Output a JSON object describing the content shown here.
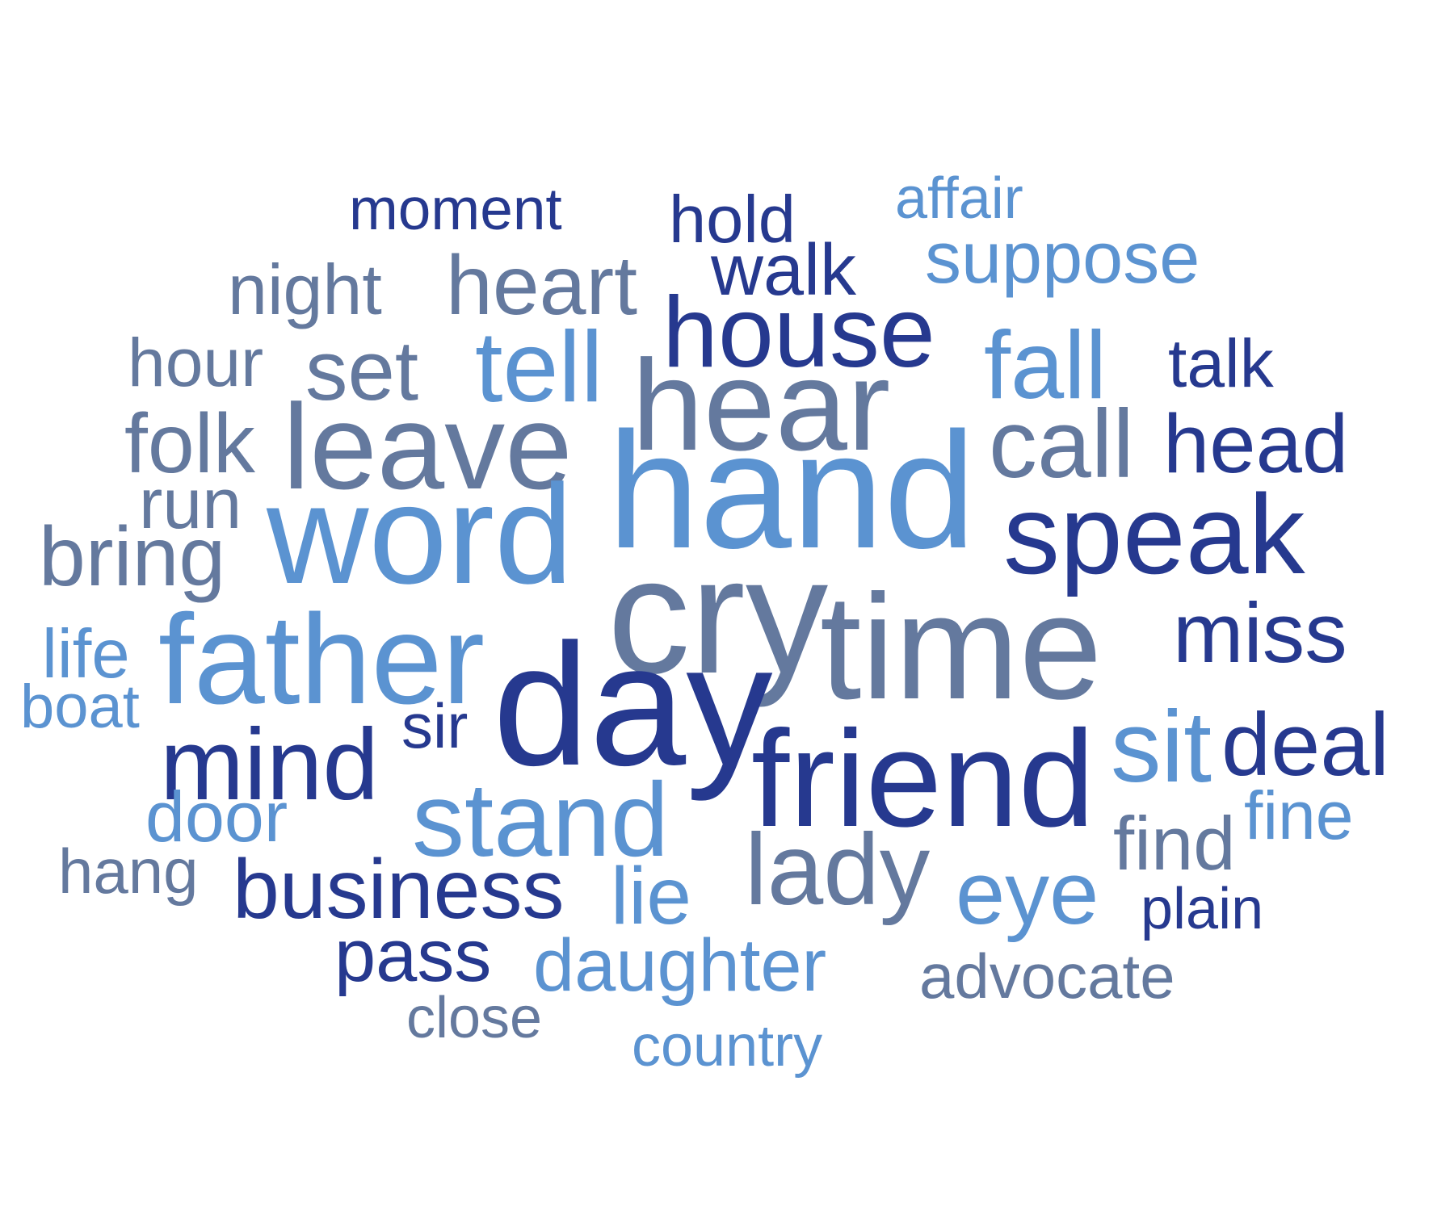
{
  "palette": {
    "dark": "#26398f",
    "light": "#5b93d1",
    "gray": "#64799e",
    "background": "#ffffff"
  },
  "words": [
    {
      "text": "moment",
      "color": "dark"
    },
    {
      "text": "hold",
      "color": "dark"
    },
    {
      "text": "affair",
      "color": "light"
    },
    {
      "text": "walk",
      "color": "dark"
    },
    {
      "text": "suppose",
      "color": "light"
    },
    {
      "text": "night",
      "color": "gray"
    },
    {
      "text": "heart",
      "color": "gray"
    },
    {
      "text": "house",
      "color": "dark"
    },
    {
      "text": "hour",
      "color": "gray"
    },
    {
      "text": "set",
      "color": "gray"
    },
    {
      "text": "tell",
      "color": "light"
    },
    {
      "text": "fall",
      "color": "light"
    },
    {
      "text": "talk",
      "color": "dark"
    },
    {
      "text": "hear",
      "color": "gray"
    },
    {
      "text": "folk",
      "color": "gray"
    },
    {
      "text": "leave",
      "color": "gray"
    },
    {
      "text": "call",
      "color": "gray"
    },
    {
      "text": "head",
      "color": "dark"
    },
    {
      "text": "hand",
      "color": "light"
    },
    {
      "text": "run",
      "color": "gray"
    },
    {
      "text": "word",
      "color": "light"
    },
    {
      "text": "speak",
      "color": "dark"
    },
    {
      "text": "bring",
      "color": "gray"
    },
    {
      "text": "cry",
      "color": "gray"
    },
    {
      "text": "time",
      "color": "gray"
    },
    {
      "text": "miss",
      "color": "dark"
    },
    {
      "text": "life",
      "color": "light"
    },
    {
      "text": "father",
      "color": "light"
    },
    {
      "text": "day",
      "color": "dark"
    },
    {
      "text": "boat",
      "color": "light"
    },
    {
      "text": "sir",
      "color": "dark"
    },
    {
      "text": "sit",
      "color": "light"
    },
    {
      "text": "deal",
      "color": "dark"
    },
    {
      "text": "mind",
      "color": "dark"
    },
    {
      "text": "friend",
      "color": "dark"
    },
    {
      "text": "stand",
      "color": "light"
    },
    {
      "text": "fine",
      "color": "light"
    },
    {
      "text": "door",
      "color": "light"
    },
    {
      "text": "find",
      "color": "gray"
    },
    {
      "text": "lady",
      "color": "gray"
    },
    {
      "text": "hang",
      "color": "gray"
    },
    {
      "text": "eye",
      "color": "light"
    },
    {
      "text": "business",
      "color": "dark"
    },
    {
      "text": "lie",
      "color": "light"
    },
    {
      "text": "plain",
      "color": "dark"
    },
    {
      "text": "pass",
      "color": "dark"
    },
    {
      "text": "daughter",
      "color": "light"
    },
    {
      "text": "advocate",
      "color": "gray"
    },
    {
      "text": "close",
      "color": "gray"
    },
    {
      "text": "country",
      "color": "light"
    }
  ]
}
